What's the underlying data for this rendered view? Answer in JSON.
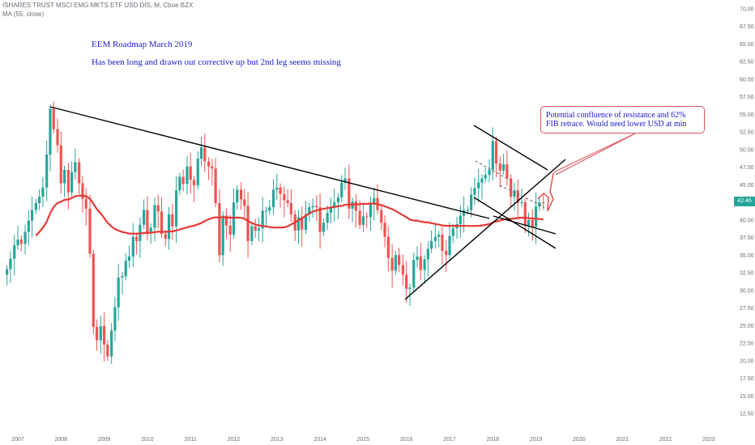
{
  "header": {
    "symbol_line": "ISHARES TRUST MSCI EMG MKTS ETF USD DIS, M, Cboe BZX",
    "indicator_line": "MA (55, close)"
  },
  "annotations": {
    "title": "EEM Roadmap March 2019",
    "subtitle": "Has been long and drawn out corrective up but 2nd leg seems missing",
    "callout": "Potential confluence of resistance and 62% FIB retrace. Would need lower USD at min"
  },
  "colors": {
    "up": "#26a69a",
    "down": "#ef5350",
    "ma": "#e53935",
    "trendline": "#000000",
    "annotation_text": "#1a1acd",
    "callout_border": "#d9505a",
    "price_tag": "#26a69a"
  },
  "chart_data": {
    "type": "candlestick",
    "x_ticks": [
      "2007",
      "2008",
      "2009",
      "2010",
      "2011",
      "2012",
      "2013",
      "2014",
      "2015",
      "2016",
      "2017",
      "2018",
      "2019",
      "2020",
      "2021",
      "2022",
      "2023"
    ],
    "y_ticks": [
      "12.50",
      "15.00",
      "17.50",
      "20.00",
      "22.50",
      "25.00",
      "27.50",
      "30.00",
      "32.50",
      "35.00",
      "37.50",
      "40.00",
      "42.50",
      "45.00",
      "47.50",
      "50.00",
      "52.50",
      "55.00",
      "57.50",
      "60.00",
      "62.50",
      "65.00",
      "67.50",
      "70.00"
    ],
    "ylim": [
      10.5,
      70.5
    ],
    "xlim": [
      2006.6,
      2023.5
    ],
    "last_price": "42.46",
    "closes": [
      [
        2006.75,
        33.0
      ],
      [
        2006.83,
        34.5
      ],
      [
        2006.92,
        36.4
      ],
      [
        2007.0,
        37.2
      ],
      [
        2007.08,
        36.6
      ],
      [
        2007.17,
        38.3
      ],
      [
        2007.25,
        39.9
      ],
      [
        2007.33,
        41.4
      ],
      [
        2007.42,
        42.4
      ],
      [
        2007.5,
        43.3
      ],
      [
        2007.58,
        44.6
      ],
      [
        2007.67,
        49.3
      ],
      [
        2007.75,
        55.8
      ],
      [
        2007.83,
        52.9
      ],
      [
        2007.92,
        50.6
      ],
      [
        2008.0,
        45.2
      ],
      [
        2008.08,
        47.1
      ],
      [
        2008.17,
        43.9
      ],
      [
        2008.25,
        46.8
      ],
      [
        2008.33,
        48.2
      ],
      [
        2008.42,
        45.2
      ],
      [
        2008.5,
        43.0
      ],
      [
        2008.58,
        41.6
      ],
      [
        2008.67,
        35.2
      ],
      [
        2008.75,
        24.8
      ],
      [
        2008.83,
        22.9
      ],
      [
        2008.92,
        24.9
      ],
      [
        2009.0,
        22.3
      ],
      [
        2009.08,
        20.6
      ],
      [
        2009.17,
        24.3
      ],
      [
        2009.25,
        27.6
      ],
      [
        2009.33,
        31.8
      ],
      [
        2009.42,
        32.0
      ],
      [
        2009.5,
        34.2
      ],
      [
        2009.58,
        34.8
      ],
      [
        2009.67,
        37.6
      ],
      [
        2009.75,
        37.0
      ],
      [
        2009.83,
        39.3
      ],
      [
        2009.92,
        41.4
      ],
      [
        2010.0,
        38.1
      ],
      [
        2010.08,
        38.9
      ],
      [
        2010.17,
        42.1
      ],
      [
        2010.25,
        41.2
      ],
      [
        2010.33,
        38.0
      ],
      [
        2010.42,
        37.3
      ],
      [
        2010.5,
        40.8
      ],
      [
        2010.58,
        39.1
      ],
      [
        2010.67,
        44.2
      ],
      [
        2010.75,
        46.1
      ],
      [
        2010.83,
        45.1
      ],
      [
        2010.92,
        47.6
      ],
      [
        2011.0,
        45.7
      ],
      [
        2011.08,
        44.9
      ],
      [
        2011.17,
        48.7
      ],
      [
        2011.25,
        50.3
      ],
      [
        2011.33,
        48.3
      ],
      [
        2011.42,
        47.6
      ],
      [
        2011.5,
        47.3
      ],
      [
        2011.58,
        42.4
      ],
      [
        2011.67,
        35.0
      ],
      [
        2011.75,
        40.6
      ],
      [
        2011.83,
        39.2
      ],
      [
        2011.92,
        37.9
      ],
      [
        2012.0,
        42.5
      ],
      [
        2012.08,
        44.3
      ],
      [
        2012.17,
        42.9
      ],
      [
        2012.25,
        42.0
      ],
      [
        2012.33,
        37.0
      ],
      [
        2012.42,
        39.1
      ],
      [
        2012.5,
        38.5
      ],
      [
        2012.58,
        38.8
      ],
      [
        2012.67,
        41.3
      ],
      [
        2012.75,
        41.3
      ],
      [
        2012.83,
        41.8
      ],
      [
        2012.92,
        44.3
      ],
      [
        2013.0,
        44.6
      ],
      [
        2013.08,
        43.7
      ],
      [
        2013.17,
        42.8
      ],
      [
        2013.25,
        42.4
      ],
      [
        2013.33,
        40.8
      ],
      [
        2013.42,
        38.5
      ],
      [
        2013.5,
        40.4
      ],
      [
        2013.58,
        38.6
      ],
      [
        2013.67,
        40.8
      ],
      [
        2013.75,
        41.8
      ],
      [
        2013.83,
        42.0
      ],
      [
        2013.92,
        41.8
      ],
      [
        2014.0,
        38.3
      ],
      [
        2014.08,
        39.6
      ],
      [
        2014.17,
        41.0
      ],
      [
        2014.25,
        41.7
      ],
      [
        2014.33,
        42.5
      ],
      [
        2014.42,
        43.2
      ],
      [
        2014.5,
        45.3
      ],
      [
        2014.58,
        45.9
      ],
      [
        2014.67,
        41.6
      ],
      [
        2014.75,
        42.6
      ],
      [
        2014.83,
        41.3
      ],
      [
        2014.92,
        39.3
      ],
      [
        2015.0,
        40.5
      ],
      [
        2015.08,
        40.4
      ],
      [
        2015.17,
        42.3
      ],
      [
        2015.25,
        43.1
      ],
      [
        2015.33,
        41.4
      ],
      [
        2015.42,
        39.6
      ],
      [
        2015.5,
        37.6
      ],
      [
        2015.58,
        34.6
      ],
      [
        2015.67,
        32.8
      ],
      [
        2015.75,
        35.0
      ],
      [
        2015.83,
        33.6
      ],
      [
        2015.92,
        32.2
      ],
      [
        2016.0,
        30.2
      ],
      [
        2016.08,
        30.4
      ],
      [
        2016.17,
        34.3
      ],
      [
        2016.25,
        34.8
      ],
      [
        2016.33,
        32.9
      ],
      [
        2016.42,
        34.4
      ],
      [
        2016.5,
        35.9
      ],
      [
        2016.58,
        37.0
      ],
      [
        2016.67,
        37.6
      ],
      [
        2016.75,
        37.9
      ],
      [
        2016.83,
        35.6
      ],
      [
        2016.92,
        35.0
      ],
      [
        2017.0,
        37.7
      ],
      [
        2017.08,
        38.8
      ],
      [
        2017.17,
        39.4
      ],
      [
        2017.25,
        40.6
      ],
      [
        2017.33,
        41.4
      ],
      [
        2017.42,
        41.4
      ],
      [
        2017.5,
        43.6
      ],
      [
        2017.58,
        44.5
      ],
      [
        2017.67,
        45.3
      ],
      [
        2017.75,
        45.9
      ],
      [
        2017.83,
        46.4
      ],
      [
        2017.92,
        47.1
      ],
      [
        2018.0,
        51.2
      ],
      [
        2018.08,
        48.0
      ],
      [
        2018.17,
        47.0
      ],
      [
        2018.25,
        47.9
      ],
      [
        2018.33,
        45.9
      ],
      [
        2018.42,
        43.3
      ],
      [
        2018.5,
        44.2
      ],
      [
        2018.58,
        42.4
      ],
      [
        2018.67,
        42.5
      ],
      [
        2018.75,
        39.2
      ],
      [
        2018.83,
        40.0
      ],
      [
        2018.92,
        39.0
      ],
      [
        2019.0,
        41.9
      ],
      [
        2019.08,
        42.5
      ],
      [
        2019.17,
        42.46
      ]
    ]
  }
}
